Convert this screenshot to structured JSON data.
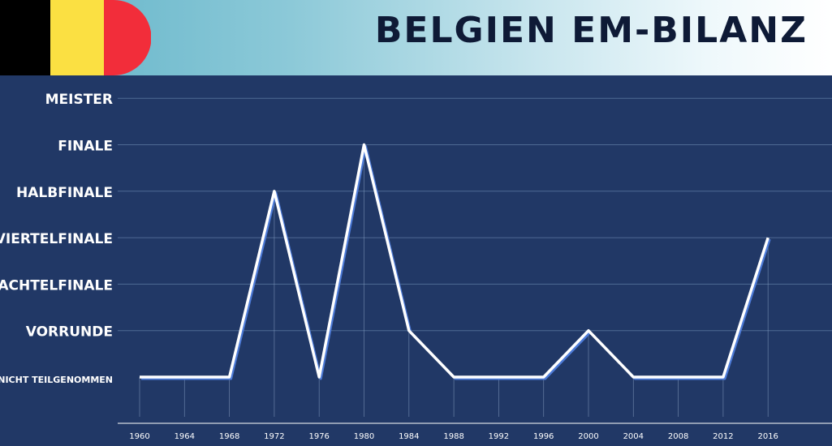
{
  "header": {
    "title": "BELGIEN EM-BILANZ",
    "flag_colors": [
      "#000000",
      "#fbe042",
      "#f22d3a"
    ]
  },
  "colors": {
    "background": "#213866",
    "line": "#ffffff",
    "line_shadow": "#4d7bd8",
    "grid": "#4f6a94"
  },
  "chart_data": {
    "type": "line",
    "title": "BELGIEN EM-BILANZ",
    "xlabel": "",
    "ylabel": "",
    "categories": [
      "1960",
      "1964",
      "1968",
      "1972",
      "1976",
      "1980",
      "1984",
      "1988",
      "1992",
      "1996",
      "2000",
      "2004",
      "2008",
      "2012",
      "2016"
    ],
    "y_levels": [
      "NICHT TEILGENOMMEN",
      "VORRUNDE",
      "ACHTELFINALE",
      "VIERTELFINALE",
      "HALBFINALE",
      "FINALE",
      "MEISTER"
    ],
    "series": [
      {
        "values": [
          0,
          0,
          0,
          4,
          0,
          5,
          1,
          0,
          0,
          0,
          1,
          0,
          0,
          0,
          3
        ]
      }
    ],
    "ylim": [
      0,
      6
    ],
    "grid": true
  }
}
